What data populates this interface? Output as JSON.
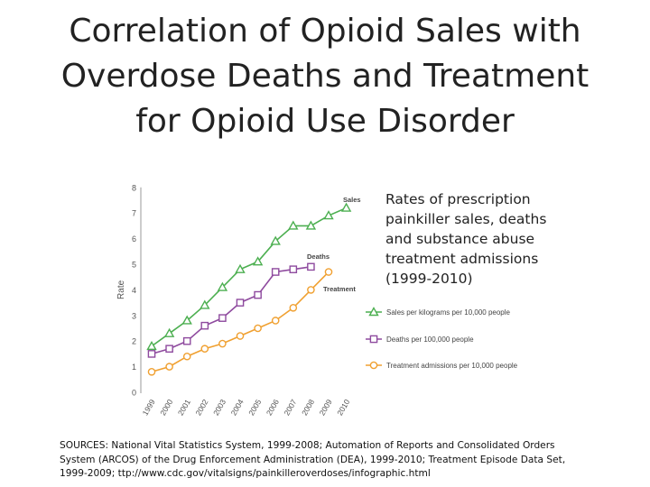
{
  "slide": {
    "title_lines": [
      "Correlation of Opioid Sales with",
      "Overdose Deaths and Treatment",
      "for Opioid Use Disorder"
    ],
    "caption_lines": [
      "Rates of prescription",
      "painkiller sales, deaths",
      "and substance abuse",
      "treatment admissions",
      "(1999-2010)"
    ],
    "sources_lines": [
      "SOURCES: National Vital Statistics System, 1999-2008; Automation of Reports and Consolidated Orders",
      "System (ARCOS) of the Drug Enforcement Administration (DEA), 1999-2010; Treatment Episode Data Set,",
      "1999-2009; ttp://www.cdc.gov/vitalsigns/painkilleroverdoses/infographic.html"
    ]
  },
  "chart_data": {
    "type": "line",
    "ylabel": "Rate",
    "xlabel": "",
    "ylim": [
      0,
      8
    ],
    "yticks": [
      "0",
      "1",
      "2",
      "3",
      "4",
      "5",
      "6",
      "7",
      "8"
    ],
    "categories": [
      "1999",
      "2000",
      "2001",
      "2002",
      "2003",
      "2004",
      "2005",
      "2006",
      "2007",
      "2008",
      "2009",
      "2010"
    ],
    "series": [
      {
        "name": "Sales",
        "marker": "triangle",
        "color": "#4caf50",
        "legend": "Sales per kilograms per 10,000 people",
        "values": [
          1.8,
          2.3,
          2.8,
          3.4,
          4.1,
          4.8,
          5.1,
          5.9,
          6.5,
          6.5,
          6.9,
          7.2
        ]
      },
      {
        "name": "Deaths",
        "marker": "square",
        "color": "#8e4a9e",
        "legend": "Deaths per 100,000 people",
        "values": [
          1.5,
          1.7,
          2.0,
          2.6,
          2.9,
          3.5,
          3.8,
          4.7,
          4.8,
          4.9,
          null,
          null
        ]
      },
      {
        "name": "Treatment",
        "marker": "circle",
        "color": "#f0a030",
        "legend": "Treatment admissions per 10,000 people",
        "values": [
          0.8,
          1.0,
          1.4,
          1.7,
          1.9,
          2.2,
          2.5,
          2.8,
          3.3,
          4.0,
          4.7,
          null
        ]
      }
    ]
  }
}
